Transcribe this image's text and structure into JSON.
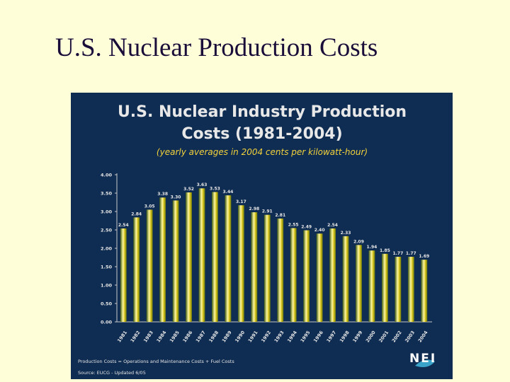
{
  "slide": {
    "title": "U.S. Nuclear Production Costs"
  },
  "chart_data": {
    "type": "bar",
    "title": "U.S. Nuclear Industry Production Costs (1981-2004)",
    "title_line1": "U.S. Nuclear Industry Production",
    "title_line2": "Costs (1981-2004)",
    "subtitle": "(yearly averages in 2004 cents per kilowatt-hour)",
    "categories": [
      "1981",
      "1982",
      "1983",
      "1984",
      "1985",
      "1986",
      "1987",
      "1988",
      "1989",
      "1990",
      "1991",
      "1992",
      "1993",
      "1994",
      "1995",
      "1996",
      "1997",
      "1998",
      "1999",
      "2000",
      "2001",
      "2002",
      "2003",
      "2004"
    ],
    "values": [
      2.54,
      2.84,
      3.05,
      3.38,
      3.3,
      3.52,
      3.63,
      3.53,
      3.44,
      3.17,
      2.98,
      2.91,
      2.81,
      2.55,
      2.49,
      2.4,
      2.54,
      2.33,
      2.09,
      1.94,
      1.85,
      1.77,
      1.77,
      1.69
    ],
    "y_ticks": [
      "0.00",
      "0.50",
      "1.00",
      "1.50",
      "2.00",
      "2.50",
      "3.00",
      "3.50",
      "4.00"
    ],
    "ylim": [
      0,
      4
    ],
    "grid": false,
    "footnote": "Production Costs = Operations and Maintenance Costs + Fuel Costs",
    "source": "Source: EUCG - Updated 6/05",
    "logo_text": "NEI",
    "colors": {
      "panel_bg": "#0f2c52",
      "title": "#e8e8e8",
      "subtitle": "#f2d23b",
      "bar_light": "#fff8a0",
      "bar_mid": "#d6c21c",
      "bar_dark": "#3f5a12",
      "axis_text": "#e6e6e6"
    }
  }
}
